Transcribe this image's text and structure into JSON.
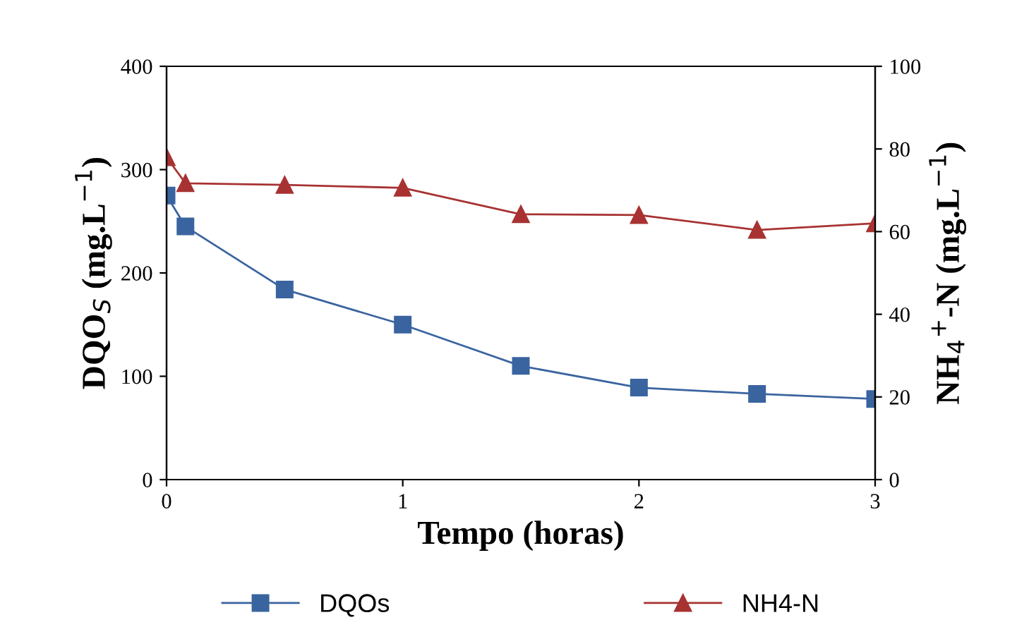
{
  "chart_data": {
    "type": "line",
    "xlabel": "Tempo (horas)",
    "ylabel": "DQO$_{S}$ (mg.L$^{−1}$)",
    "y2label": "NH$_{4}$$^{+}$-N (mg.L$^{−1}$)",
    "xlim": [
      0,
      3
    ],
    "xticks": [
      0,
      1,
      2,
      3
    ],
    "ylim": [
      0,
      400
    ],
    "yticks": [
      0,
      100,
      200,
      300,
      400
    ],
    "y2lim": [
      0,
      100
    ],
    "y2ticks": [
      0,
      20,
      40,
      60,
      80,
      100
    ],
    "legend": "bottom",
    "grid": false,
    "series": [
      {
        "name": "DQOs",
        "color": "#3a64a0",
        "marker": "square",
        "x": [
          0,
          0.08,
          0.5,
          1,
          1.5,
          2,
          2.5,
          3
        ],
        "values": [
          275,
          245,
          184,
          150,
          110,
          89,
          83,
          78
        ]
      },
      {
        "name": "NH4-N",
        "color": "#a83232",
        "marker": "triangle",
        "axis": "y2",
        "x": [
          0,
          0.08,
          0.5,
          1,
          1.5,
          2,
          2.5,
          3
        ],
        "values": [
          78,
          71.7,
          71.3,
          70.6,
          64.2,
          64,
          60.4,
          62
        ]
      }
    ]
  }
}
